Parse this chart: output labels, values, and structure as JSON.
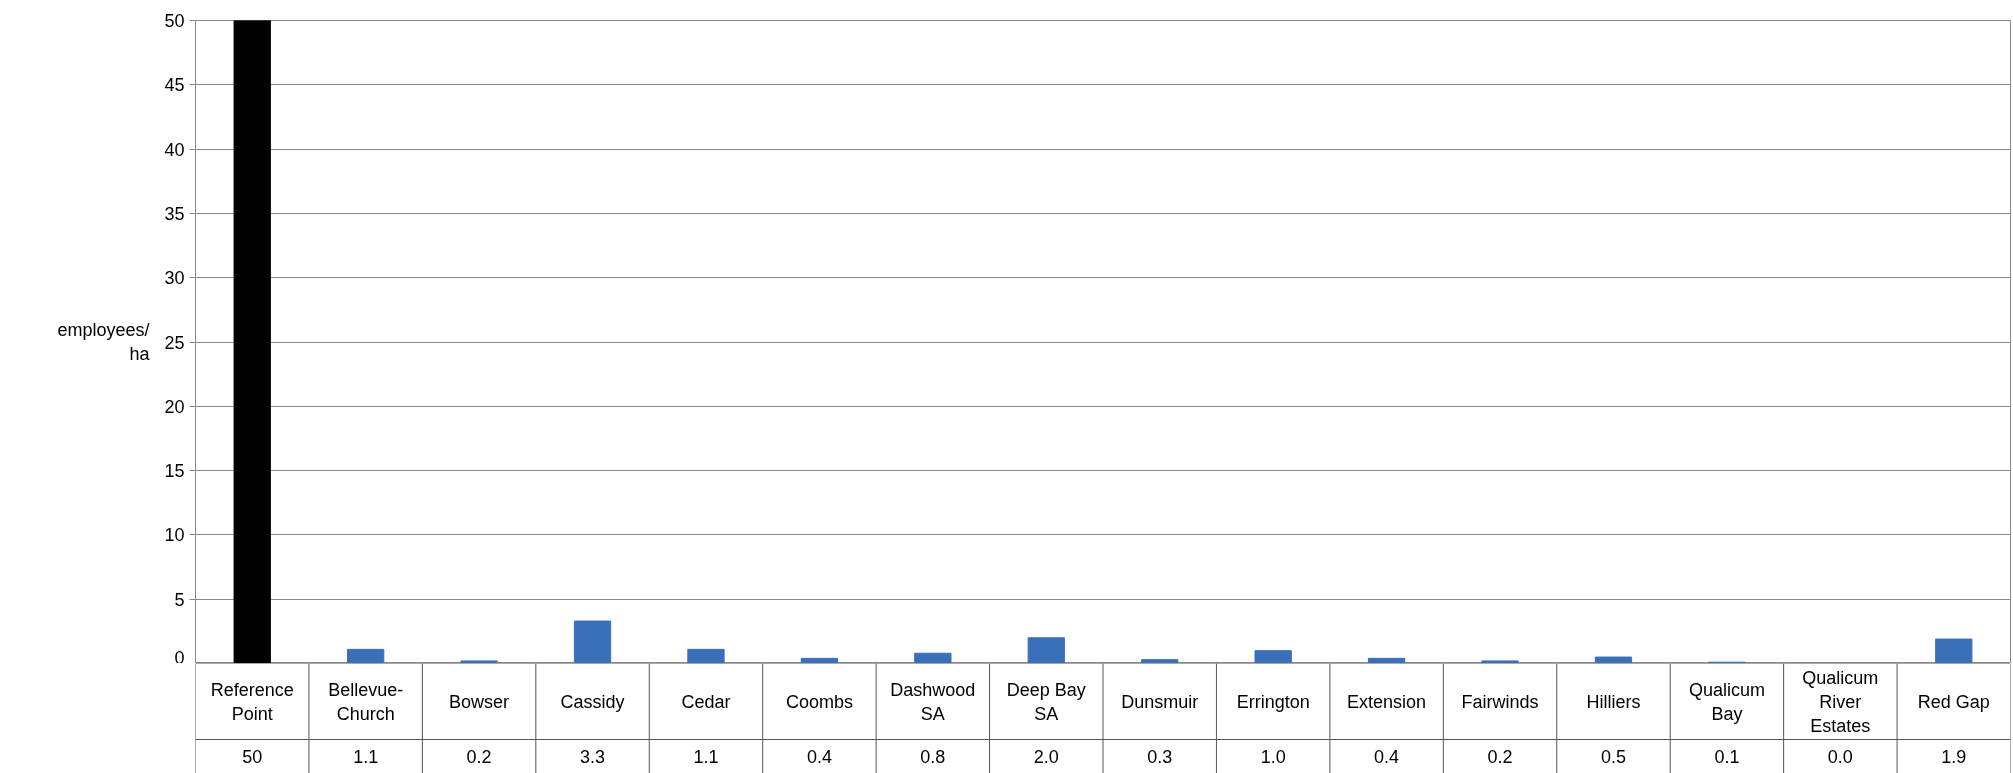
{
  "chart_data": {
    "type": "bar",
    "ylabel": "employees/ha",
    "categories": [
      "Reference Point",
      "Bellevue-Church",
      "Bowser",
      "Cassidy",
      "Cedar",
      "Coombs",
      "Dashwood SA",
      "Deep Bay SA",
      "Dunsmuir",
      "Errington",
      "Extension",
      "Fairwinds",
      "Hilliers",
      "Qualicum Bay",
      "Qualicum River Estates",
      "Red Gap"
    ],
    "values": [
      50,
      1.1,
      0.2,
      3.3,
      1.1,
      0.4,
      0.8,
      2.0,
      0.3,
      1.0,
      0.4,
      0.2,
      0.5,
      0.1,
      0.0,
      1.9
    ],
    "value_labels": [
      "50",
      "1.1",
      "0.2",
      "3.3",
      "1.1",
      "0.4",
      "0.8",
      "2.0",
      "0.3",
      "1.0",
      "0.4",
      "0.2",
      "0.5",
      "0.1",
      "0.0",
      "1.9"
    ],
    "colors": [
      "#000000",
      "#3a70ba",
      "#3a70ba",
      "#3a70ba",
      "#3a70ba",
      "#3a70ba",
      "#3a70ba",
      "#3a70ba",
      "#3a70ba",
      "#3a70ba",
      "#3a70ba",
      "#3a70ba",
      "#3a70ba",
      "#3a70ba",
      "#3a70ba",
      "#3a70ba"
    ],
    "ylim": [
      0,
      50
    ],
    "yticks": [
      0,
      5,
      10,
      15,
      20,
      25,
      30,
      35,
      40,
      45,
      50
    ],
    "grid": "y"
  }
}
